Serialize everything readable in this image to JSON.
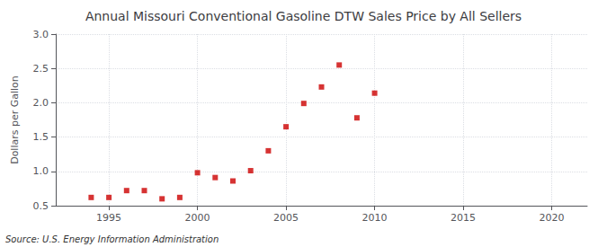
{
  "chart_data": {
    "type": "scatter",
    "title": "Annual Missouri Conventional Gasoline DTW Sales Price by All Sellers",
    "ylabel": "Dollars per Gallon",
    "annotations": [
      "Source: U.S. Energy Information Administration"
    ],
    "x": [
      1994,
      1995,
      1996,
      1997,
      1998,
      1999,
      2000,
      2001,
      2002,
      2003,
      2004,
      2005,
      2006,
      2007,
      2008,
      2009,
      2010
    ],
    "values": [
      0.62,
      0.62,
      0.72,
      0.72,
      0.6,
      0.62,
      0.98,
      0.91,
      0.86,
      1.01,
      1.3,
      1.65,
      1.99,
      2.23,
      2.55,
      1.78,
      2.14
    ],
    "color": "#cc0000",
    "marker": "square",
    "xlim": [
      1992,
      2022
    ],
    "xticks": [
      1995,
      2000,
      2005,
      2010,
      2015,
      2020
    ],
    "ylim": [
      0.5,
      3.0
    ],
    "yticks": [
      0.5,
      {
        "value": 1,
        "label": "1.0"
      },
      1.5,
      {
        "value": 2,
        "label": "2.0"
      },
      2.5,
      {
        "value": 3,
        "label": "3.0"
      }
    ],
    "grid": true
  }
}
